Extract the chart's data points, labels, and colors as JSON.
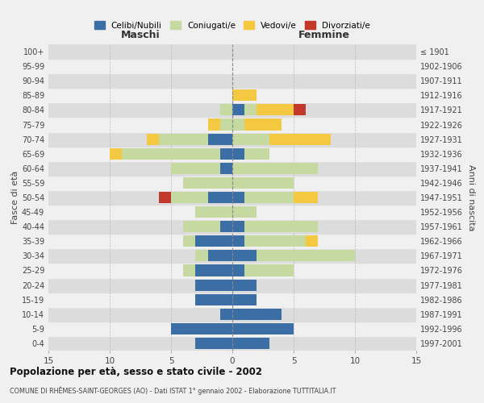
{
  "age_groups": [
    "0-4",
    "5-9",
    "10-14",
    "15-19",
    "20-24",
    "25-29",
    "30-34",
    "35-39",
    "40-44",
    "45-49",
    "50-54",
    "55-59",
    "60-64",
    "65-69",
    "70-74",
    "75-79",
    "80-84",
    "85-89",
    "90-94",
    "95-99",
    "100+"
  ],
  "birth_years": [
    "1997-2001",
    "1992-1996",
    "1987-1991",
    "1982-1986",
    "1977-1981",
    "1972-1976",
    "1967-1971",
    "1962-1966",
    "1957-1961",
    "1952-1956",
    "1947-1951",
    "1942-1946",
    "1937-1941",
    "1932-1936",
    "1927-1931",
    "1922-1926",
    "1917-1921",
    "1912-1916",
    "1907-1911",
    "1902-1906",
    "≤ 1901"
  ],
  "males": {
    "celibi": [
      3,
      5,
      1,
      3,
      3,
      3,
      2,
      3,
      1,
      0,
      2,
      0,
      1,
      1,
      2,
      0,
      0,
      0,
      0,
      0,
      0
    ],
    "coniugati": [
      0,
      0,
      0,
      0,
      0,
      1,
      1,
      1,
      3,
      3,
      3,
      4,
      4,
      8,
      4,
      1,
      1,
      0,
      0,
      0,
      0
    ],
    "vedovi": [
      0,
      0,
      0,
      0,
      0,
      0,
      0,
      0,
      0,
      0,
      0,
      0,
      0,
      1,
      1,
      1,
      0,
      0,
      0,
      0,
      0
    ],
    "divorziati": [
      0,
      0,
      0,
      0,
      0,
      0,
      0,
      0,
      0,
      0,
      1,
      0,
      0,
      0,
      0,
      0,
      0,
      0,
      0,
      0,
      0
    ]
  },
  "females": {
    "nubili": [
      3,
      5,
      4,
      2,
      2,
      1,
      2,
      1,
      1,
      0,
      1,
      0,
      0,
      1,
      0,
      0,
      1,
      0,
      0,
      0,
      0
    ],
    "coniugate": [
      0,
      0,
      0,
      0,
      0,
      4,
      8,
      5,
      6,
      2,
      4,
      5,
      7,
      2,
      3,
      1,
      1,
      0,
      0,
      0,
      0
    ],
    "vedove": [
      0,
      0,
      0,
      0,
      0,
      0,
      0,
      1,
      0,
      0,
      2,
      0,
      0,
      0,
      5,
      3,
      3,
      2,
      0,
      0,
      0
    ],
    "divorziate": [
      0,
      0,
      0,
      0,
      0,
      0,
      0,
      0,
      0,
      0,
      0,
      0,
      0,
      0,
      0,
      0,
      1,
      0,
      0,
      0,
      0
    ]
  },
  "color_celibi": "#3a6ea5",
  "color_coniugati": "#c5d9a0",
  "color_vedovi": "#f5c842",
  "color_divorziati": "#c0392b",
  "title": "Popolazione per età, sesso e stato civile - 2002",
  "subtitle": "COMUNE DI RHÊMES-SAINT-GEORGES (AO) - Dati ISTAT 1° gennaio 2002 - Elaborazione TUTTITALIA.IT",
  "xlabel_left": "Maschi",
  "xlabel_right": "Femmine",
  "ylabel_left": "Fasce di età",
  "ylabel_right": "Anni di nascita",
  "xlim": 15,
  "bg_color": "#f0f0f0",
  "plot_bg": "#e8e8e8"
}
